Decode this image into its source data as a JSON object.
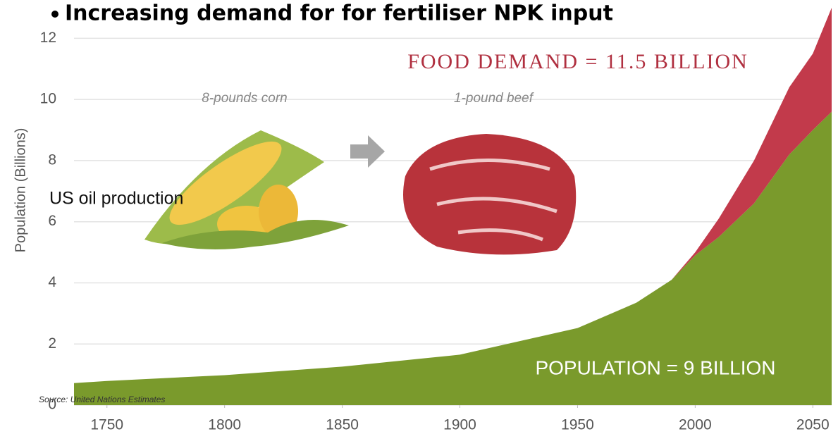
{
  "chart_data": {
    "type": "stacked_area",
    "title": "Increasing demand for for fertiliser NPK input",
    "y_label": "Population (Billions)",
    "annotations": [
      "FOOD DEMAND = 11.5 BILLION",
      "8-pounds corn",
      "1-pound beef",
      "US oil production",
      "POPULATION = 9 BILLION",
      "Source: United Nations Estimates"
    ],
    "x": [
      1736,
      1750,
      1800,
      1850,
      1900,
      1950,
      1975,
      1990,
      2000,
      2010,
      2025,
      2040,
      2050,
      2058
    ],
    "series": [
      {
        "color": "#7a9a2c",
        "values": [
          0.72,
          0.79,
          0.98,
          1.26,
          1.65,
          2.52,
          3.35,
          4.1,
          4.9,
          5.5,
          6.6,
          8.2,
          9.0,
          9.6
        ]
      },
      {
        "color": "#c23a4b",
        "values": [
          null,
          null,
          null,
          null,
          null,
          null,
          null,
          0,
          0.1,
          0.6,
          1.4,
          2.2,
          2.5,
          3.4
        ]
      }
    ],
    "xlim": [
      1736,
      2058
    ],
    "ylim": [
      0,
      13
    ],
    "xticks": [
      1750,
      1800,
      1850,
      1900,
      1950,
      2000,
      2050
    ],
    "yticks": [
      0,
      2,
      4,
      6,
      8,
      10,
      12
    ],
    "grid": true
  }
}
